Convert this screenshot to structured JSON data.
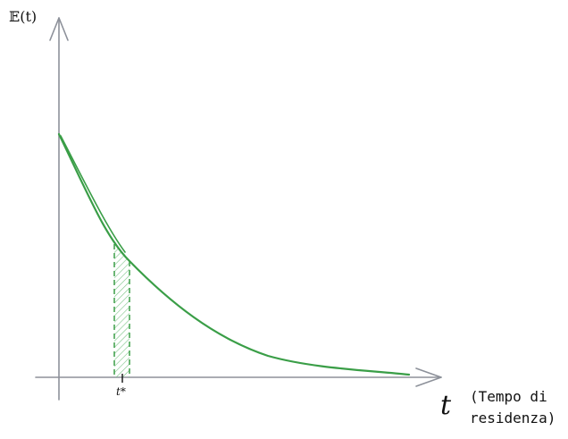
{
  "diagram": {
    "y_axis_label": "𝔼(t)",
    "x_axis_label": "t",
    "x_axis_note_line1": "(Tempo di",
    "x_axis_note_line2": "residenza)",
    "marker_label": "t*"
  },
  "colors": {
    "curve": "#3a9e47",
    "axis": "#8d919a",
    "text": "#111111"
  }
}
